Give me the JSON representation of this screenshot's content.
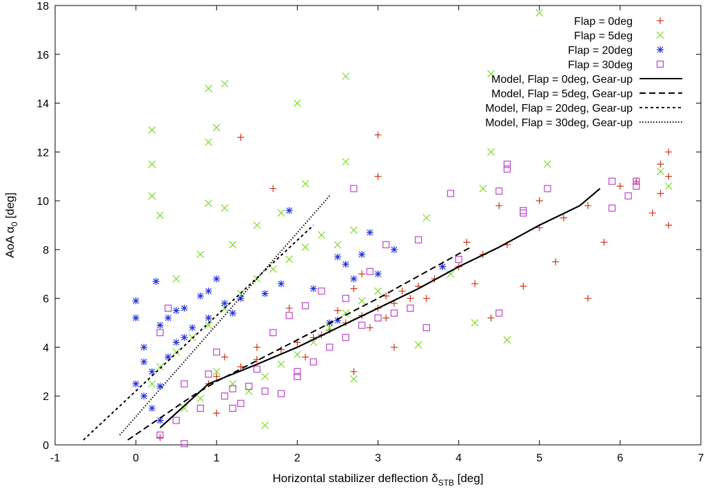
{
  "chart_data": {
    "type": "scatter",
    "title": "",
    "xlabel": "Horizontal stabilizer deflection δ",
    "xlabel_sub": "STB",
    "xlabel_unit": " [deg]",
    "ylabel": "AoA α",
    "ylabel_sub": "0",
    "ylabel_unit": " [deg]",
    "xlim": [
      -1,
      7
    ],
    "ylim": [
      0,
      18
    ],
    "xticks": [
      -1,
      0,
      1,
      2,
      3,
      4,
      5,
      6,
      7
    ],
    "yticks": [
      0,
      2,
      4,
      6,
      8,
      10,
      12,
      14,
      16,
      18
    ],
    "grid": false,
    "legend_position": "top-right",
    "series": [
      {
        "name": "Flap = 0deg",
        "marker": "plus",
        "color": "#cc3311",
        "points": [
          [
            0.9,
            2.5
          ],
          [
            1.0,
            2.8
          ],
          [
            1.3,
            3.2
          ],
          [
            1.5,
            3.5
          ],
          [
            1.8,
            3.9
          ],
          [
            2.0,
            4.2
          ],
          [
            2.2,
            4.4
          ],
          [
            2.4,
            4.7
          ],
          [
            2.6,
            5.0
          ],
          [
            2.8,
            5.3
          ],
          [
            3.0,
            5.6
          ],
          [
            3.1,
            6.1
          ],
          [
            3.2,
            5.8
          ],
          [
            3.3,
            6.3
          ],
          [
            3.1,
            5.2
          ],
          [
            2.9,
            4.8
          ],
          [
            3.4,
            6.0
          ],
          [
            3.5,
            6.5
          ],
          [
            3.7,
            6.8
          ],
          [
            4.0,
            7.3
          ],
          [
            4.3,
            7.8
          ],
          [
            4.6,
            8.2
          ],
          [
            5.0,
            8.9
          ],
          [
            5.3,
            9.3
          ],
          [
            5.6,
            9.8
          ],
          [
            6.0,
            10.6
          ],
          [
            6.5,
            11.5
          ],
          [
            6.6,
            11.0
          ],
          [
            6.6,
            12.0
          ],
          [
            6.5,
            10.3
          ],
          [
            6.4,
            9.5
          ],
          [
            6.6,
            9.0
          ],
          [
            2.3,
            4.5
          ],
          [
            2.5,
            5.5
          ],
          [
            2.7,
            6.4
          ],
          [
            3.0,
            12.7
          ],
          [
            3.0,
            11.0
          ],
          [
            1.3,
            12.6
          ],
          [
            2.7,
            3.0
          ],
          [
            3.2,
            4.0
          ],
          [
            4.4,
            5.2
          ],
          [
            4.8,
            6.5
          ],
          [
            5.6,
            6.0
          ],
          [
            5.2,
            7.5
          ],
          [
            1.7,
            10.5
          ],
          [
            1.0,
            1.3
          ],
          [
            1.1,
            3.6
          ],
          [
            2.1,
            3.6
          ],
          [
            3.6,
            6.0
          ],
          [
            3.8,
            7.3
          ],
          [
            4.2,
            6.6
          ],
          [
            4.5,
            9.8
          ],
          [
            5.0,
            10.0
          ],
          [
            5.8,
            8.3
          ],
          [
            6.2,
            10.8
          ],
          [
            4.1,
            8.3
          ],
          [
            2.8,
            7.0
          ],
          [
            1.9,
            5.6
          ],
          [
            1.5,
            4.0
          ],
          [
            0.3,
            0.3
          ]
        ]
      },
      {
        "name": "Flap = 5deg",
        "marker": "cross",
        "color": "#77dd22",
        "points": [
          [
            0.2,
            2.5
          ],
          [
            0.3,
            3.2
          ],
          [
            0.5,
            3.8
          ],
          [
            0.7,
            4.4
          ],
          [
            0.9,
            4.9
          ],
          [
            1.1,
            5.6
          ],
          [
            1.3,
            6.2
          ],
          [
            1.5,
            6.8
          ],
          [
            1.7,
            7.2
          ],
          [
            1.9,
            7.6
          ],
          [
            2.1,
            8.1
          ],
          [
            2.3,
            8.6
          ],
          [
            2.5,
            8.2
          ],
          [
            2.7,
            8.8
          ],
          [
            1.0,
            3.0
          ],
          [
            1.2,
            2.5
          ],
          [
            1.4,
            2.2
          ],
          [
            1.6,
            2.8
          ],
          [
            1.8,
            3.3
          ],
          [
            2.0,
            3.7
          ],
          [
            2.2,
            4.2
          ],
          [
            2.4,
            4.8
          ],
          [
            2.6,
            5.4
          ],
          [
            2.8,
            5.9
          ],
          [
            3.0,
            6.3
          ],
          [
            0.2,
            12.9
          ],
          [
            0.2,
            11.5
          ],
          [
            0.2,
            10.2
          ],
          [
            0.9,
            14.6
          ],
          [
            1.1,
            14.8
          ],
          [
            1.0,
            13.0
          ],
          [
            0.9,
            12.4
          ],
          [
            2.6,
            15.1
          ],
          [
            2.0,
            14.0
          ],
          [
            5.0,
            17.7
          ],
          [
            4.4,
            15.2
          ],
          [
            0.9,
            9.9
          ],
          [
            1.1,
            9.7
          ],
          [
            0.3,
            9.4
          ],
          [
            2.1,
            10.7
          ],
          [
            2.6,
            11.6
          ],
          [
            4.3,
            10.5
          ],
          [
            4.4,
            12.0
          ],
          [
            5.1,
            11.5
          ],
          [
            3.6,
            9.3
          ],
          [
            4.6,
            4.3
          ],
          [
            6.6,
            10.6
          ],
          [
            6.5,
            11.2
          ],
          [
            0.5,
            6.8
          ],
          [
            0.8,
            7.8
          ],
          [
            1.2,
            8.2
          ],
          [
            1.5,
            9.0
          ],
          [
            1.8,
            9.5
          ],
          [
            0.6,
            1.5
          ],
          [
            0.8,
            1.9
          ],
          [
            1.6,
            0.8
          ],
          [
            2.7,
            2.7
          ],
          [
            3.5,
            4.1
          ],
          [
            4.2,
            5.0
          ],
          [
            3.9,
            7.0
          ]
        ]
      },
      {
        "name": "Flap = 20deg",
        "marker": "star",
        "color": "#2233dd",
        "points": [
          [
            0.0,
            5.9
          ],
          [
            0.0,
            5.2
          ],
          [
            0.1,
            4.0
          ],
          [
            0.2,
            3.0
          ],
          [
            0.3,
            2.4
          ],
          [
            0.1,
            2.0
          ],
          [
            0.2,
            1.5
          ],
          [
            0.3,
            1.0
          ],
          [
            0.25,
            6.7
          ],
          [
            0.4,
            5.2
          ],
          [
            0.5,
            5.5
          ],
          [
            0.6,
            4.4
          ],
          [
            0.7,
            4.8
          ],
          [
            0.8,
            6.1
          ],
          [
            0.9,
            6.3
          ],
          [
            1.0,
            6.8
          ],
          [
            1.1,
            5.8
          ],
          [
            1.2,
            5.4
          ],
          [
            1.3,
            6.0
          ],
          [
            0.3,
            4.9
          ],
          [
            0.6,
            5.6
          ],
          [
            1.9,
            9.6
          ],
          [
            2.5,
            7.7
          ],
          [
            2.6,
            7.4
          ],
          [
            2.7,
            6.8
          ],
          [
            2.8,
            7.8
          ],
          [
            2.5,
            5.1
          ],
          [
            2.4,
            5.0
          ],
          [
            2.9,
            8.7
          ],
          [
            3.0,
            7.0
          ],
          [
            3.2,
            8.0
          ],
          [
            3.8,
            7.3
          ],
          [
            2.2,
            6.4
          ],
          [
            1.8,
            6.6
          ],
          [
            1.6,
            6.2
          ],
          [
            0.5,
            4.2
          ],
          [
            0.4,
            3.6
          ],
          [
            0.9,
            5.2
          ],
          [
            0.0,
            2.5
          ],
          [
            0.1,
            3.4
          ]
        ]
      },
      {
        "name": "Flap = 30deg",
        "marker": "square",
        "color": "#bb44cc",
        "points": [
          [
            0.6,
            0.05
          ],
          [
            0.3,
            0.4
          ],
          [
            0.5,
            1.0
          ],
          [
            0.8,
            1.5
          ],
          [
            1.1,
            2.0
          ],
          [
            1.2,
            2.3
          ],
          [
            1.3,
            1.7
          ],
          [
            1.4,
            2.4
          ],
          [
            1.6,
            2.2
          ],
          [
            1.8,
            2.1
          ],
          [
            2.0,
            3.0
          ],
          [
            2.2,
            3.4
          ],
          [
            2.4,
            4.0
          ],
          [
            2.6,
            4.4
          ],
          [
            2.8,
            4.9
          ],
          [
            3.0,
            5.2
          ],
          [
            3.2,
            5.4
          ],
          [
            3.4,
            5.6
          ],
          [
            0.3,
            4.6
          ],
          [
            0.4,
            5.6
          ],
          [
            0.6,
            2.5
          ],
          [
            0.9,
            2.9
          ],
          [
            1.0,
            3.8
          ],
          [
            1.5,
            3.1
          ],
          [
            1.7,
            4.6
          ],
          [
            1.9,
            5.3
          ],
          [
            2.1,
            5.7
          ],
          [
            2.3,
            6.3
          ],
          [
            2.6,
            6.0
          ],
          [
            2.7,
            10.5
          ],
          [
            2.9,
            7.1
          ],
          [
            3.1,
            8.2
          ],
          [
            3.5,
            8.4
          ],
          [
            3.9,
            10.3
          ],
          [
            4.0,
            7.6
          ],
          [
            4.6,
            11.5
          ],
          [
            4.6,
            11.3
          ],
          [
            4.5,
            10.4
          ],
          [
            4.8,
            9.6
          ],
          [
            4.8,
            9.5
          ],
          [
            5.1,
            10.5
          ],
          [
            5.9,
            10.8
          ],
          [
            6.1,
            10.2
          ],
          [
            6.2,
            10.8
          ],
          [
            5.9,
            9.7
          ],
          [
            6.2,
            10.6
          ],
          [
            4.5,
            5.4
          ],
          [
            3.6,
            4.8
          ],
          [
            1.2,
            1.5
          ],
          [
            2.0,
            2.8
          ]
        ]
      }
    ],
    "models": [
      {
        "name": "Model, Flap = 0deg, Gear-up",
        "dash": "solid",
        "points": [
          [
            0.3,
            0.7
          ],
          [
            0.9,
            2.5
          ],
          [
            1.5,
            3.3
          ],
          [
            2.0,
            4.0
          ],
          [
            2.5,
            4.8
          ],
          [
            3.0,
            5.6
          ],
          [
            3.5,
            6.4
          ],
          [
            4.0,
            7.3
          ],
          [
            4.5,
            8.1
          ],
          [
            5.0,
            9.0
          ],
          [
            5.5,
            9.8
          ],
          [
            5.75,
            10.5
          ]
        ]
      },
      {
        "name": "Model, Flap = 5deg, Gear-up",
        "dash": "dashed",
        "points": [
          [
            -0.1,
            0.2
          ],
          [
            0.7,
            2.0
          ],
          [
            1.0,
            2.6
          ],
          [
            2.0,
            4.3
          ],
          [
            3.0,
            6.0
          ],
          [
            4.15,
            8.1
          ]
        ]
      },
      {
        "name": "Model, Flap = 20deg, Gear-up",
        "dash": "short-dashed",
        "points": [
          [
            -0.65,
            0.2
          ],
          [
            2.2,
            9.0
          ]
        ]
      },
      {
        "name": "Model, Flap = 30deg, Gear-up",
        "dash": "dotted",
        "points": [
          [
            -0.2,
            0.4
          ],
          [
            2.4,
            10.2
          ]
        ]
      }
    ]
  }
}
